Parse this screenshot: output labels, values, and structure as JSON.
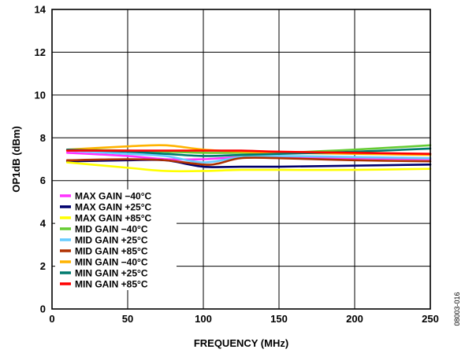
{
  "chart_data": {
    "type": "line",
    "xlabel": "FREQUENCY (MHz)",
    "ylabel": "OP1dB (dBm)",
    "xlim": [
      0,
      250
    ],
    "ylim": [
      0,
      14
    ],
    "x_ticks": [
      0,
      50,
      100,
      150,
      200,
      250
    ],
    "y_ticks": [
      0,
      2,
      4,
      6,
      8,
      10,
      12,
      14
    ],
    "grid": true,
    "legend_position": "bottom-left",
    "figure_code": "08003-016",
    "series": [
      {
        "name": "MAX GAIN −40°C",
        "color": "#ff33ff",
        "x": [
          10,
          50,
          75,
          100,
          125,
          150,
          200,
          250
        ],
        "y": [
          7.3,
          7.15,
          7.0,
          7.0,
          7.1,
          7.1,
          7.05,
          7.0
        ]
      },
      {
        "name": "MAX GAIN +25°C",
        "color": "#00006e",
        "x": [
          10,
          50,
          75,
          100,
          125,
          150,
          200,
          250
        ],
        "y": [
          6.9,
          6.95,
          6.95,
          6.65,
          6.65,
          6.65,
          6.7,
          6.75
        ]
      },
      {
        "name": "MAX GAIN +85°C",
        "color": "#ffff00",
        "x": [
          10,
          50,
          75,
          100,
          125,
          150,
          200,
          250
        ],
        "y": [
          6.85,
          6.6,
          6.45,
          6.45,
          6.5,
          6.5,
          6.5,
          6.55
        ]
      },
      {
        "name": "MID GAIN −40°C",
        "color": "#66cc33",
        "x": [
          10,
          50,
          75,
          100,
          125,
          150,
          200,
          250
        ],
        "y": [
          7.45,
          7.4,
          7.35,
          7.3,
          7.3,
          7.3,
          7.45,
          7.65
        ]
      },
      {
        "name": "MID GAIN +25°C",
        "color": "#66ccff",
        "x": [
          10,
          50,
          75,
          100,
          125,
          150,
          200,
          250
        ],
        "y": [
          7.4,
          7.25,
          7.15,
          6.85,
          7.1,
          7.15,
          7.1,
          7.05
        ]
      },
      {
        "name": "MID GAIN +85°C",
        "color": "#b03000",
        "x": [
          10,
          50,
          75,
          100,
          110,
          125,
          150,
          200,
          250
        ],
        "y": [
          6.95,
          7.0,
          6.95,
          6.75,
          6.8,
          7.05,
          7.05,
          6.95,
          6.9
        ]
      },
      {
        "name": "MIN GAIN −40°C",
        "color": "#ffb300",
        "x": [
          10,
          50,
          75,
          100,
          125,
          150,
          200,
          250
        ],
        "y": [
          7.45,
          7.6,
          7.65,
          7.45,
          7.35,
          7.3,
          7.25,
          7.2
        ]
      },
      {
        "name": "MIN GAIN +25°C",
        "color": "#007a6e",
        "x": [
          10,
          50,
          75,
          100,
          125,
          150,
          200,
          250
        ],
        "y": [
          7.45,
          7.35,
          7.25,
          7.15,
          7.2,
          7.25,
          7.35,
          7.5
        ]
      },
      {
        "name": "MIN GAIN +85°C",
        "color": "#ff0000",
        "x": [
          10,
          50,
          75,
          100,
          125,
          150,
          200,
          250
        ],
        "y": [
          7.4,
          7.4,
          7.4,
          7.4,
          7.4,
          7.35,
          7.3,
          7.25
        ]
      }
    ]
  }
}
